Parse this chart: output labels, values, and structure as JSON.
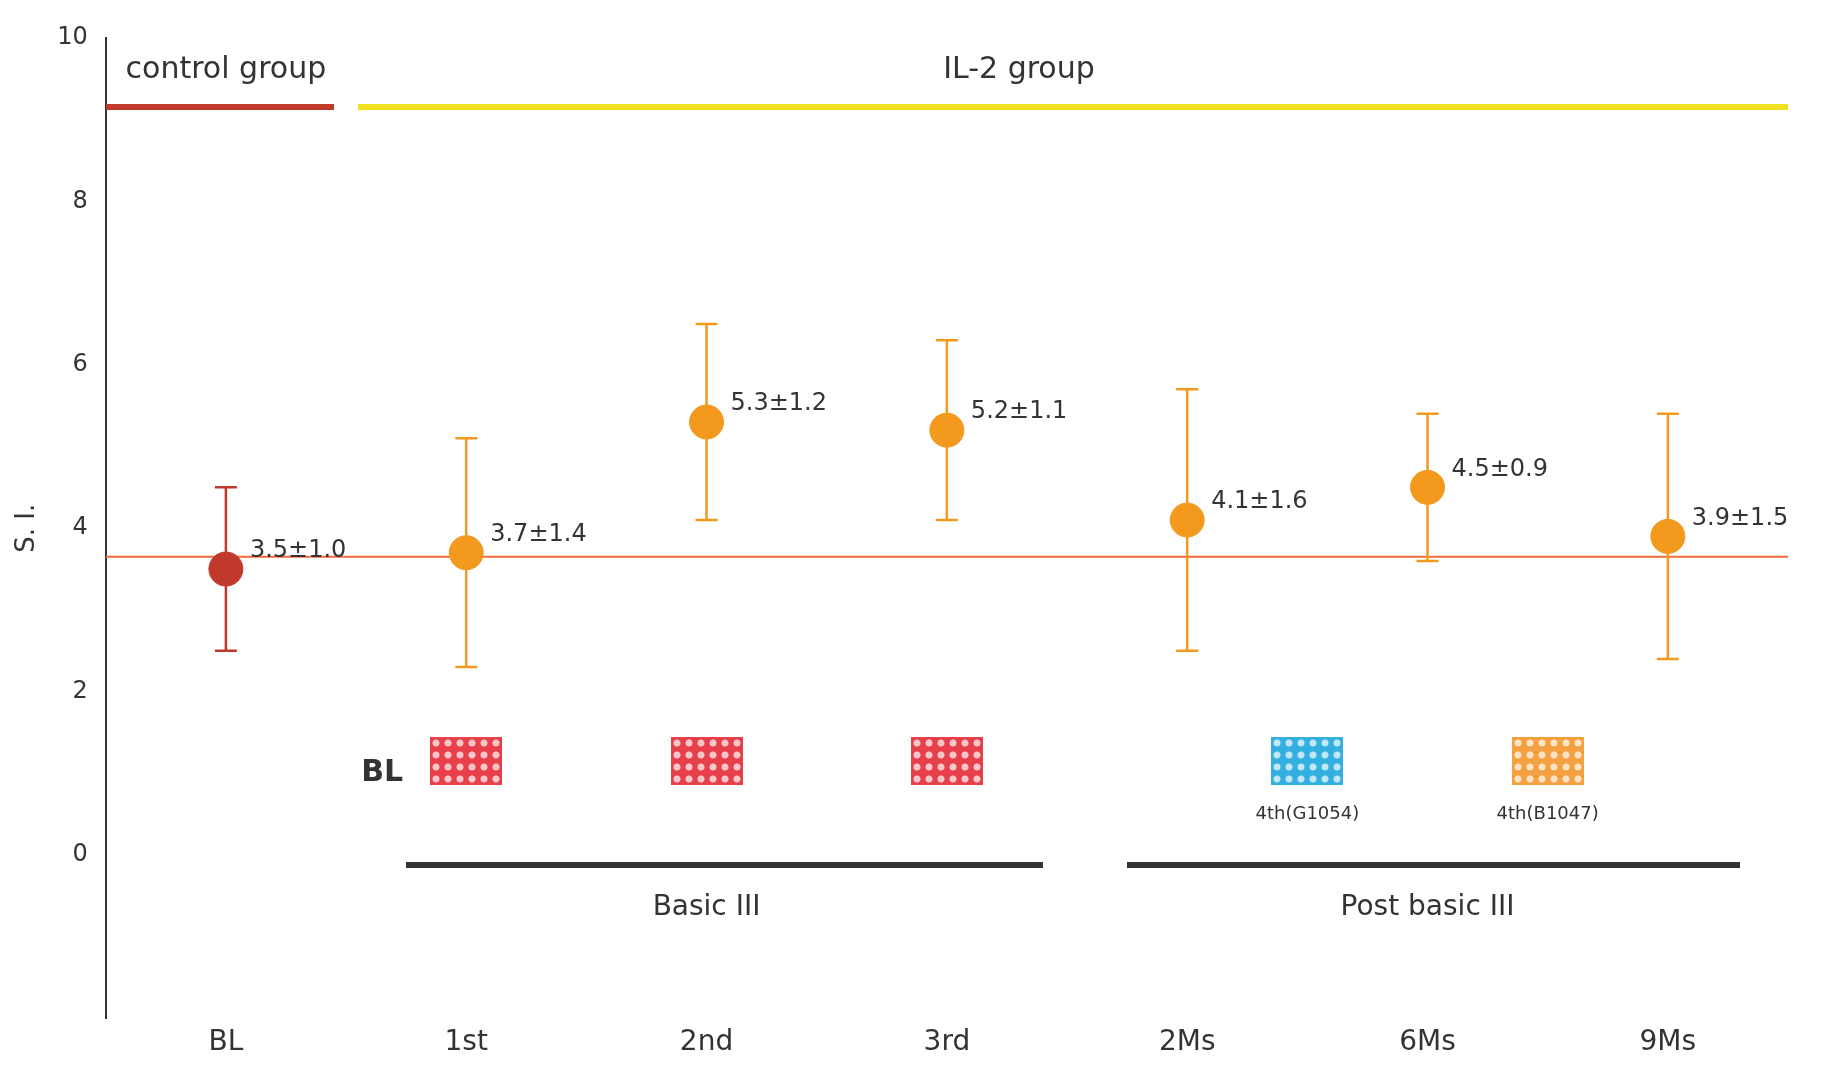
{
  "chart_data": {
    "type": "scatter",
    "ylabel": "S. I.",
    "categories": [
      "BL",
      "1st",
      "2nd",
      "3rd",
      "2Ms",
      "6Ms",
      "9Ms"
    ],
    "ylim": [
      -2,
      10
    ],
    "yticks": [
      0,
      2,
      4,
      6,
      8,
      10
    ],
    "marker": "circle",
    "series": [
      {
        "color": "#c0392b",
        "values": [
          3.5,
          null,
          null,
          null,
          null,
          null,
          null
        ],
        "errors": [
          1.0,
          null,
          null,
          null,
          null,
          null,
          null
        ],
        "value_labels": [
          "3.5±1.0",
          null,
          null,
          null,
          null,
          null,
          null
        ]
      },
      {
        "color": "#f39a1e",
        "values": [
          null,
          3.7,
          5.3,
          5.2,
          4.1,
          4.5,
          3.9
        ],
        "errors": [
          null,
          1.4,
          1.2,
          1.1,
          1.6,
          0.9,
          1.5
        ],
        "value_labels": [
          null,
          "3.7±1.4",
          "5.3±1.2",
          "5.2±1.1",
          "4.1±1.6",
          "4.5±0.9",
          "3.9±1.5"
        ]
      }
    ],
    "ref_lines": [
      {
        "axis": "y",
        "value": 3.65,
        "color": "#f06a3a"
      }
    ],
    "annotations": [
      "control group",
      "IL-2 group",
      "BL",
      "Basic III",
      "Post basic III",
      "4th(G1054)",
      "4th(B1047)"
    ]
  }
}
